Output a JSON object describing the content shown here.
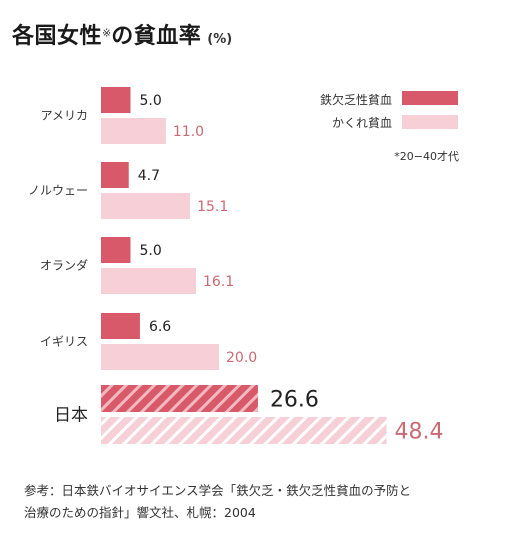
{
  "title": {
    "main": "各国女性",
    "note": "※",
    "suffix": "の貧血率",
    "unit": "(%)"
  },
  "legend": {
    "items": [
      "鉄欠乏性貧血",
      "かくれ貧血"
    ],
    "note": "*20−40才代"
  },
  "colors": {
    "iron": "#d85a6a",
    "hidden": "#f6d0d6",
    "hidden_text": "#c96a74"
  },
  "chart_data": {
    "type": "bar",
    "orientation": "horizontal",
    "categories": [
      "アメリカ",
      "ノルウェー",
      "オランダ",
      "イギリス",
      "日本"
    ],
    "series": [
      {
        "name": "鉄欠乏性貧血",
        "values": [
          5.0,
          4.7,
          5.0,
          6.6,
          26.6
        ],
        "value_labels": [
          "5.0",
          "4.7",
          "5.0",
          "6.6",
          "26.6"
        ]
      },
      {
        "name": "かくれ貧血",
        "values": [
          11.0,
          15.1,
          16.1,
          20.0,
          48.4
        ],
        "value_labels": [
          "11.0",
          "15.1",
          "16.1",
          "20.0",
          "48.4"
        ]
      }
    ],
    "highlighted_category": "日本",
    "highlight_style": "hatched",
    "grid": false
  },
  "source": {
    "line1": "参考：日本鉄バイオサイエンス学会「鉄欠乏・鉄欠乏性貧血の予防と",
    "line2": "治療のための指針」響文社、札幌：2004"
  }
}
